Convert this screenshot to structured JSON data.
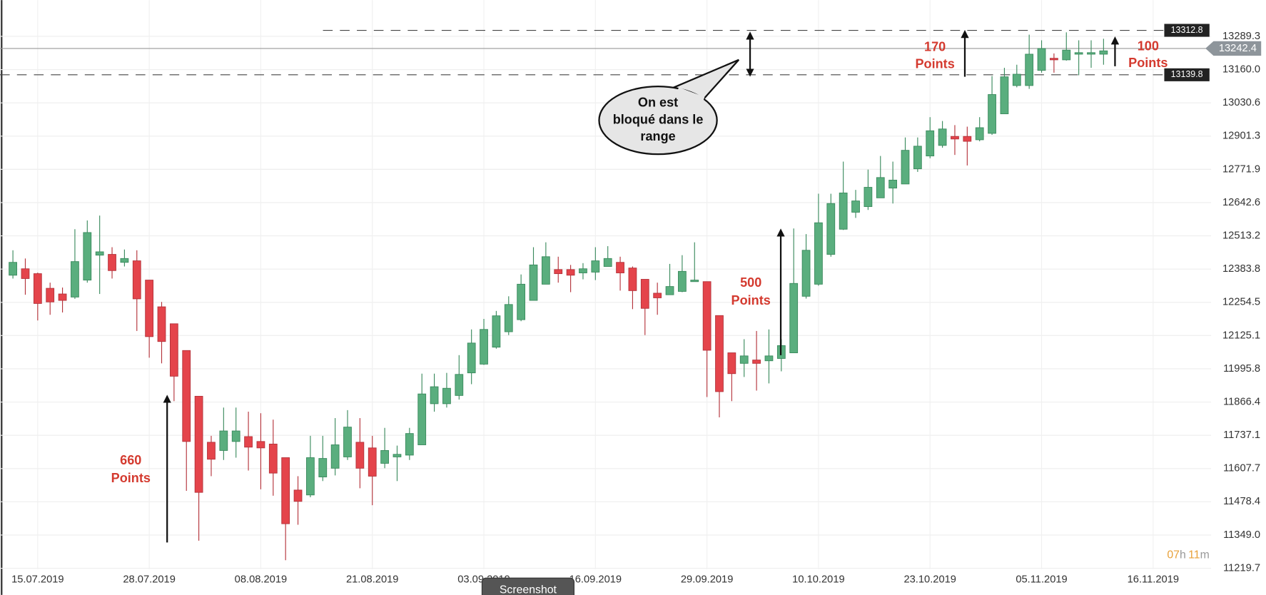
{
  "chart_data": {
    "type": "candlestick",
    "categories": [
      null,
      null,
      "15.07.2019",
      null,
      null,
      null,
      null,
      null,
      null,
      null,
      null,
      "28.07.2019",
      null,
      null,
      null,
      null,
      null,
      null,
      null,
      null,
      "08.08.2019",
      null,
      null,
      null,
      null,
      null,
      null,
      null,
      null,
      "21.08.2019",
      null,
      null,
      null,
      null,
      null,
      null,
      null,
      null,
      "03.09.2019",
      null,
      null,
      null,
      null,
      null,
      null,
      null,
      null,
      "16.09.2019",
      null,
      null,
      null,
      null,
      null,
      null,
      null,
      null,
      "29.09.2019",
      null,
      null,
      null,
      null,
      null,
      null,
      null,
      null,
      "10.10.2019",
      null,
      null,
      null,
      null,
      null,
      null,
      null,
      null,
      "23.10.2019",
      null,
      null,
      null,
      null,
      null,
      null,
      null,
      null,
      "05.11.2019",
      null,
      null,
      null,
      null,
      null,
      null,
      null,
      null,
      "16.11.2019",
      null,
      null
    ],
    "open": [
      12360,
      12385,
      12366,
      12309,
      12287,
      12275,
      12341,
      12438,
      12441,
      12410,
      12416,
      12341,
      12237,
      12171,
      12067,
      11889,
      11710,
      11678,
      11713,
      11732,
      11713,
      11703,
      11650,
      11524,
      11505,
      11575,
      11609,
      11653,
      11710,
      11688,
      11628,
      11653,
      11660,
      11700,
      11860,
      11860,
      11892,
      11980,
      12014,
      12080,
      12140,
      12187,
      12262,
      12325,
      12382,
      12382,
      12369,
      12372,
      12394,
      12410,
      12388,
      12344,
      12290,
      12284,
      12297,
      12335,
      12335,
      12203,
      12058,
      12017,
      12030,
      12027,
      12036,
      12058,
      12278,
      12325,
      12441,
      12539,
      12605,
      12627,
      12661,
      12699,
      12715,
      12774,
      12824,
      12865,
      12900,
      12900,
      12887,
      12912,
      12988,
      13098,
      13098,
      13157,
      13204,
      13198,
      13220,
      13220,
      13220,
      null,
      null,
      null,
      null,
      null,
      null
    ],
    "high": [
      12457,
      12425,
      12370,
      12331,
      12312,
      12539,
      12573,
      12592,
      12469,
      12460,
      12457,
      12341,
      12256,
      12171,
      12067,
      11889,
      11735,
      11845,
      11845,
      11829,
      11823,
      11798,
      11650,
      11578,
      11735,
      11735,
      11804,
      11835,
      11804,
      11735,
      11766,
      11697,
      11766,
      11977,
      11977,
      11980,
      12049,
      12149,
      12190,
      12221,
      12278,
      12363,
      12469,
      12488,
      12432,
      12400,
      12407,
      12469,
      12473,
      12432,
      12394,
      12344,
      12331,
      12404,
      12438,
      12488,
      12335,
      12203,
      12058,
      12111,
      12143,
      12149,
      12111,
      12542,
      12520,
      12677,
      12677,
      12802,
      12692,
      12771,
      12824,
      12802,
      12896,
      12896,
      12975,
      12960,
      12944,
      12938,
      12975,
      13135,
      13167,
      13179,
      13296,
      13274,
      13223,
      13305,
      13274,
      13274,
      13280,
      null,
      null,
      null,
      null,
      null,
      null
    ],
    "low": [
      12347,
      12284,
      12184,
      12206,
      12215,
      12268,
      12331,
      12287,
      12347,
      12394,
      12143,
      12039,
      12017,
      11870,
      11521,
      11327,
      11578,
      11641,
      11650,
      11600,
      11527,
      11502,
      11251,
      11389,
      11496,
      11559,
      11581,
      11641,
      11531,
      11465,
      11609,
      11559,
      11641,
      11700,
      11829,
      11845,
      11876,
      11936,
      12011,
      12074,
      12127,
      12181,
      12262,
      12325,
      12331,
      12294,
      12344,
      12341,
      12394,
      12300,
      12228,
      12127,
      12206,
      12284,
      12294,
      12335,
      11886,
      11807,
      11870,
      11964,
      11911,
      11939,
      11986,
      12058,
      12269,
      12319,
      12432,
      12536,
      12583,
      12614,
      12661,
      12639,
      12715,
      12762,
      12815,
      12856,
      12828,
      12787,
      12881,
      12906,
      12988,
      13091,
      13085,
      13148,
      13148,
      13195,
      13138,
      13167,
      13179,
      null,
      null,
      null,
      null,
      null,
      null
    ],
    "close": [
      12410,
      12347,
      12250,
      12256,
      12262,
      12413,
      12526,
      12451,
      12378,
      12425,
      12268,
      12121,
      12102,
      11967,
      11713,
      11515,
      11644,
      11754,
      11754,
      11691,
      11688,
      11590,
      11393,
      11480,
      11650,
      11647,
      11700,
      11769,
      11609,
      11578,
      11678,
      11663,
      11744,
      11898,
      11926,
      11920,
      11974,
      12096,
      12149,
      12202,
      12246,
      12325,
      12400,
      12432,
      12366,
      12360,
      12385,
      12416,
      12425,
      12369,
      12300,
      12231,
      12272,
      12316,
      12375,
      12341,
      12068,
      11907,
      11977,
      12046,
      12017,
      12046,
      12086,
      12328,
      12457,
      12564,
      12639,
      12680,
      12649,
      12702,
      12740,
      12730,
      12846,
      12862,
      12922,
      12929,
      12890,
      12881,
      12934,
      13063,
      13132,
      13142,
      13220,
      13242,
      13198,
      13236,
      13226,
      13226,
      13233,
      null,
      null,
      null,
      null,
      null,
      null
    ],
    "up_color": "#5aae7e",
    "down_color": "#e4444b",
    "ylim": [
      11153.6,
      13430.6
    ],
    "yticks": [
      {
        "value": 11219.7,
        "label": "11219.7"
      },
      {
        "value": 11349,
        "label": "11349.0"
      },
      11478.4,
      11607.7,
      11737.1,
      11866.4,
      11995.8,
      12125.1,
      12254.5,
      12383.8,
      12513.2,
      12642.6,
      12771.9,
      12901.3,
      13030.6,
      {
        "value": 13160,
        "label": "13160.0"
      },
      13289.3
    ],
    "grid": true,
    "levels": [
      13312.8,
      13139.8
    ],
    "last_price": 13242.4,
    "annotations": [
      {
        "lines": [
          "660",
          "Points"
        ]
      },
      {
        "lines": [
          "500",
          "Points"
        ]
      },
      {
        "lines": [
          "170",
          "Points"
        ]
      },
      {
        "lines": [
          "100",
          "Points"
        ]
      }
    ],
    "callout": [
      "On est",
      "bloqué dans le",
      "range"
    ],
    "timer": [
      "07",
      "h",
      "11",
      "m"
    ],
    "button": "Screenshot"
  }
}
